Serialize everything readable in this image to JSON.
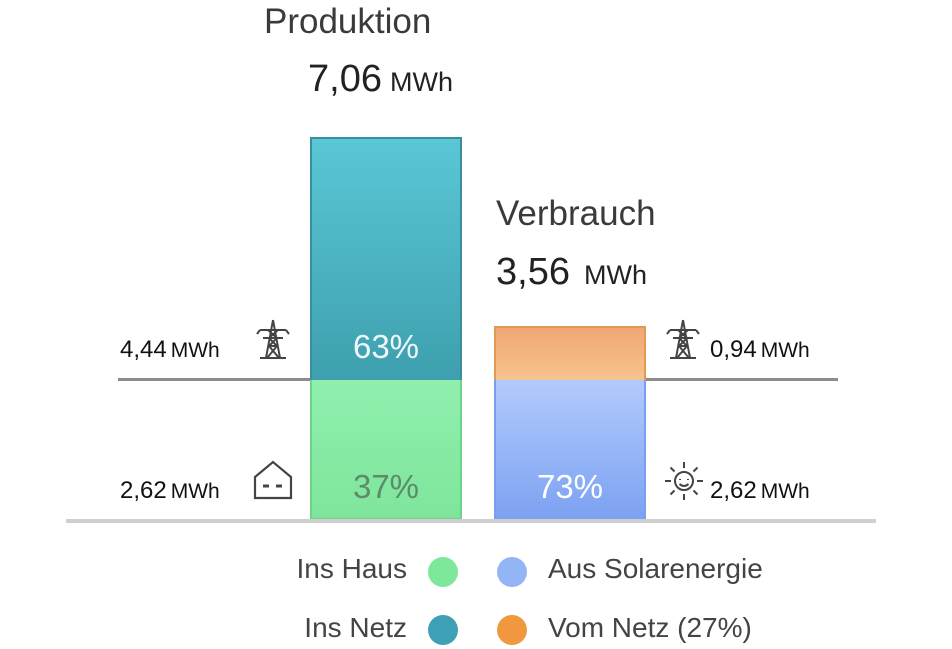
{
  "chart_data": {
    "type": "bar",
    "unit": "MWh",
    "production": {
      "title": "Produktion",
      "total": "7,06",
      "total_unit": "MWh",
      "segments": [
        {
          "name": "Ins Netz",
          "percent": 63,
          "percent_label": "63%",
          "value_label": "4,44",
          "unit": "MWh",
          "icon": "power-tower-icon",
          "color": "#4fb8c8"
        },
        {
          "name": "Ins Haus",
          "percent": 37,
          "percent_label": "37%",
          "value_label": "2,62",
          "unit": "MWh",
          "icon": "house-icon",
          "color": "#8eeaa8"
        }
      ]
    },
    "consumption": {
      "title": "Verbrauch",
      "total": "3,56",
      "total_unit": "MWh",
      "segments": [
        {
          "name": "Vom Netz",
          "percent": 27,
          "value_label": "0,94",
          "unit": "MWh",
          "icon": "power-tower-icon",
          "color": "#f2a96e"
        },
        {
          "name": "Aus Solarenergie",
          "percent": 73,
          "percent_label": "73%",
          "value_label": "2,62",
          "unit": "MWh",
          "icon": "sun-icon",
          "color": "#8fb2f8"
        }
      ]
    },
    "legend": [
      {
        "label": "Ins Haus",
        "color": "#7ee89a"
      },
      {
        "label": "Aus Solarenergie",
        "color": "#93b5f5"
      },
      {
        "label": "Ins Netz",
        "color": "#3ea0b4"
      },
      {
        "label": "Vom Netz (27%)",
        "color": "#f09840"
      }
    ]
  }
}
